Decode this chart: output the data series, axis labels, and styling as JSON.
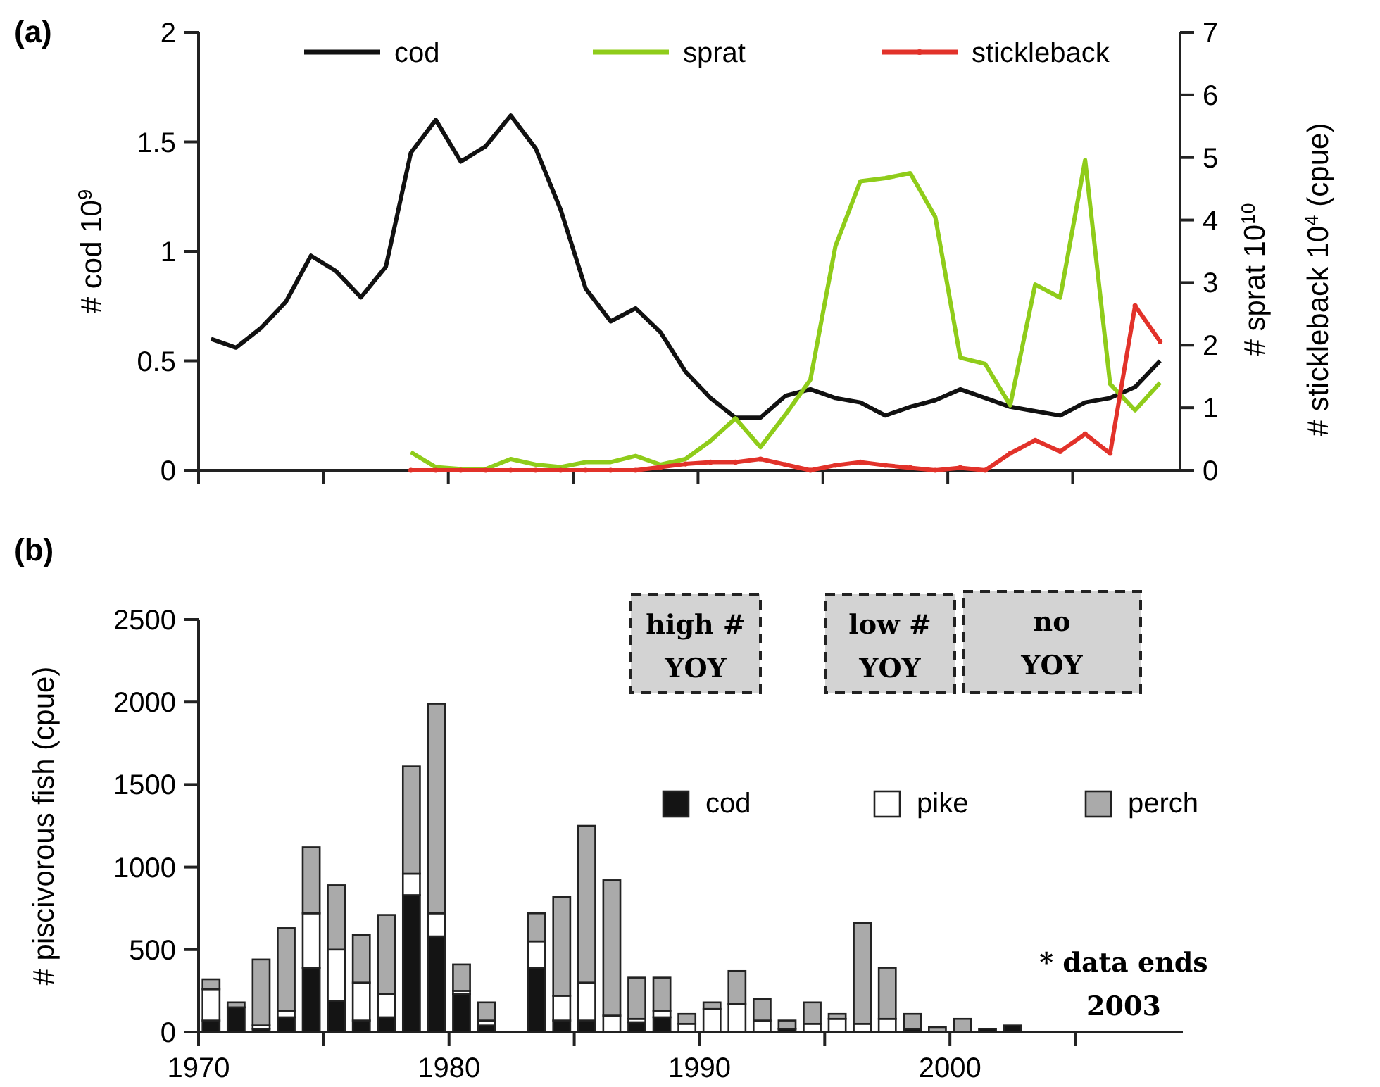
{
  "chart_data": [
    {
      "type": "line",
      "title": "(a)",
      "ylabel": "# cod 10$^{9}$",
      "y2label": "# sprat 10$^{10}$\n# stickleback 10$^{4}$ (cpue)",
      "xlim": [
        1970,
        2009.3
      ],
      "xticks": [
        1970,
        1975,
        1980,
        1985,
        1990,
        1995,
        2000,
        2005
      ],
      "ylim": [
        0,
        2
      ],
      "yticks": [
        0,
        0.5,
        1,
        1.5,
        2
      ],
      "y2lim": [
        0,
        7
      ],
      "y2ticks": [
        0,
        1,
        2,
        3,
        4,
        5,
        6,
        7
      ],
      "tick_labels": "y",
      "legend": "top",
      "series": [
        {
          "name": "cod",
          "color": "#111111",
          "x": [
            1970.5,
            1971.5,
            1972.5,
            1973.5,
            1974.5,
            1975.5,
            1976.5,
            1977.5,
            1978.5,
            1979.5,
            1980.5,
            1981.5,
            1982.5,
            1983.5,
            1984.5,
            1985.5,
            1986.5,
            1987.5,
            1988.5,
            1989.5,
            1990.5,
            1991.5,
            1992.5,
            1993.5,
            1994.5,
            1995.5,
            1996.5,
            1997.5,
            1998.5,
            1999.5,
            2000.5,
            2001.5,
            2002.5,
            2003.5,
            2004.5,
            2005.5,
            2006.5,
            2007.5,
            2008.5
          ],
          "values": [
            0.6,
            0.56,
            0.65,
            0.77,
            0.98,
            0.91,
            0.79,
            0.93,
            1.45,
            1.6,
            1.41,
            1.48,
            1.62,
            1.47,
            1.19,
            0.83,
            0.68,
            0.74,
            0.63,
            0.45,
            0.33,
            0.24,
            0.24,
            0.34,
            0.37,
            0.33,
            0.31,
            0.25,
            0.29,
            0.32,
            0.37,
            0.33,
            0.29,
            0.27,
            0.25,
            0.31,
            0.33,
            0.38,
            0.5
          ]
        },
        {
          "name": "sprat",
          "color": "#8fcc1a",
          "axis": "y2",
          "x": [
            1978.5,
            1979.5,
            1980.5,
            1981.5,
            1982.5,
            1983.5,
            1984.5,
            1985.5,
            1986.5,
            1987.5,
            1988.5,
            1989.5,
            1990.5,
            1991.5,
            1992.5,
            1993.5,
            1994.5,
            1995.5,
            1996.5,
            1997.5,
            1998.5,
            1999.5,
            2000.5,
            2001.5,
            2002.5,
            2003.5,
            2004.5,
            2005.5,
            2006.5,
            2007.5,
            2008.5
          ],
          "values": [
            0.29,
            0.05,
            0.02,
            0.02,
            0.18,
            0.09,
            0.05,
            0.13,
            0.13,
            0.23,
            0.09,
            0.18,
            0.47,
            0.83,
            0.37,
            0.89,
            1.45,
            3.58,
            4.62,
            4.67,
            4.75,
            4.05,
            1.8,
            1.7,
            1.04,
            2.97,
            2.76,
            4.96,
            1.38,
            0.96,
            1.4
          ]
        },
        {
          "name": "stickleback",
          "color": "#e2322a",
          "axis": "y2",
          "marker": "circle",
          "x": [
            1978.5,
            1979.5,
            1980.5,
            1981.5,
            1982.5,
            1983.5,
            1984.5,
            1985.5,
            1986.5,
            1987.5,
            1988.5,
            1989.5,
            1990.5,
            1991.5,
            1992.5,
            1993.5,
            1994.5,
            1995.5,
            1996.5,
            1997.5,
            1998.5,
            1999.5,
            2000.5,
            2001.5,
            2002.5,
            2003.5,
            2004.5,
            2005.5,
            2006.5,
            2007.5,
            2008.5
          ],
          "values": [
            0,
            0,
            0,
            0,
            0,
            0,
            0,
            0,
            0,
            0,
            0.05,
            0.1,
            0.13,
            0.13,
            0.18,
            0.09,
            0,
            0.08,
            0.13,
            0.08,
            0.04,
            0,
            0.04,
            0,
            0.27,
            0.48,
            0.3,
            0.58,
            0.27,
            2.63,
            2.06
          ]
        }
      ]
    },
    {
      "type": "bar",
      "title": "(b)",
      "ylabel": "# piscivorous fish (cpue)",
      "stacked": true,
      "legend": "right",
      "xlim": [
        1970,
        2009.3
      ],
      "xticks": [
        1970,
        {
          "value": 1975,
          "label": null
        },
        1980,
        {
          "value": 1985,
          "label": null
        },
        1990,
        {
          "value": 1995,
          "label": null
        },
        2000,
        {
          "value": 2005,
          "label": null
        }
      ],
      "ylim": [
        0,
        2500
      ],
      "yticks": [
        0,
        500,
        1000,
        1500,
        2000,
        2500
      ],
      "annotations": [
        "high #\nYOY",
        "low #\nYOY",
        "no\nYOY",
        "* data ends\n2003"
      ],
      "x": [
        1970.5,
        1971.5,
        1972.5,
        1973.5,
        1974.5,
        1975.5,
        1976.5,
        1977.5,
        1978.5,
        1979.5,
        1980.5,
        1981.5,
        1983.5,
        1984.5,
        1985.5,
        1986.5,
        1987.5,
        1988.5,
        1989.5,
        1990.5,
        1991.5,
        1992.5,
        1993.5,
        1994.5,
        1995.5,
        1996.5,
        1997.5,
        1998.5,
        1999.5,
        2000.5,
        2001.5,
        2002.5
      ],
      "series": [
        {
          "name": "cod",
          "color": "#141414",
          "values": [
            70,
            150,
            20,
            90,
            390,
            190,
            70,
            90,
            830,
            580,
            230,
            40,
            390,
            70,
            70,
            0,
            60,
            90,
            0,
            0,
            0,
            0,
            20,
            0,
            0,
            0,
            0,
            20,
            0,
            0,
            20,
            40
          ]
        },
        {
          "name": "pike",
          "color": "#ffffff",
          "values": [
            190,
            0,
            20,
            40,
            330,
            310,
            230,
            140,
            130,
            140,
            20,
            30,
            160,
            150,
            230,
            100,
            20,
            40,
            50,
            140,
            170,
            70,
            0,
            50,
            80,
            50,
            80,
            0,
            0,
            0,
            0,
            0
          ]
        },
        {
          "name": "perch",
          "color": "#aaaaaa",
          "values": [
            60,
            30,
            400,
            500,
            400,
            390,
            290,
            480,
            650,
            1270,
            160,
            110,
            170,
            600,
            950,
            820,
            250,
            200,
            60,
            40,
            200,
            130,
            50,
            130,
            30,
            610,
            310,
            90,
            30,
            80,
            0,
            0
          ]
        }
      ]
    }
  ]
}
